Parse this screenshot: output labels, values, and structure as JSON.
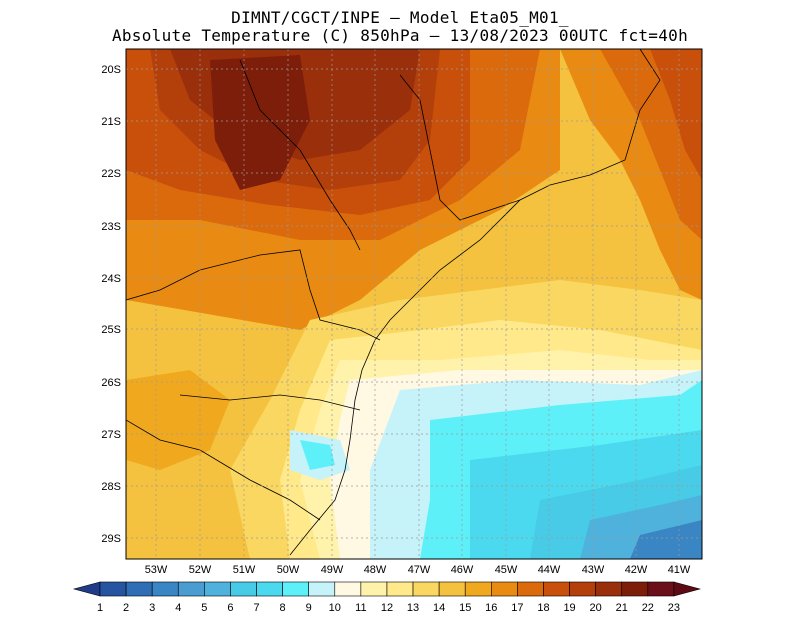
{
  "header": {
    "line1": "DIMNT/CGCT/INPE –  Model Eta05_M01_",
    "line2": "Absolute Temperature (C) 850hPa –  13/08/2023 00UTC fct=40h"
  },
  "map": {
    "lat_labels": [
      "20S",
      "21S",
      "22S",
      "23S",
      "24S",
      "25S",
      "26S",
      "27S",
      "28S",
      "29S"
    ],
    "lon_labels": [
      "53W",
      "52W",
      "51W",
      "50W",
      "49W",
      "48W",
      "47W",
      "46W",
      "45W",
      "44W",
      "43W",
      "42W",
      "41W"
    ]
  },
  "colorbar": {
    "labels": [
      "1",
      "2",
      "3",
      "4",
      "5",
      "6",
      "7",
      "8",
      "9",
      "10",
      "11",
      "12",
      "13",
      "14",
      "15",
      "16",
      "17",
      "18",
      "19",
      "20",
      "21",
      "22",
      "23"
    ],
    "colors": [
      "#1f3b8a",
      "#2654a0",
      "#2f6eb4",
      "#3a85c4",
      "#4a9cd1",
      "#4fb2dc",
      "#47cbe6",
      "#4ad9ee",
      "#5df0f8",
      "#c6f2fa",
      "#fff8e3",
      "#fff2aa",
      "#ffe98a",
      "#fad760",
      "#f5c23f",
      "#f0a81e",
      "#e98b12",
      "#db6a0d",
      "#c9500b",
      "#b33f0b",
      "#9a2f0c",
      "#7d1e0b",
      "#6b0f1a",
      "#5e0a14"
    ]
  }
}
